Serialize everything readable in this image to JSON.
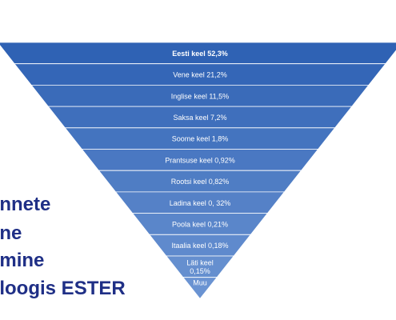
{
  "colors": {
    "segment_top": "#2f62b4",
    "segment_bottom": "#6a93d2",
    "divider": "#ffffff",
    "side_text": "#1f2f86",
    "label": "#ffffff"
  },
  "side_text": {
    "lines": [
      "annete",
      "line",
      "emine",
      "aloogis ESTER"
    ]
  },
  "chart_data": {
    "type": "funnel",
    "labels": [
      "Eesti keel 52,3%",
      "Vene keel 21,2%",
      "Inglise keel 11,5%",
      "Saksa keel 7,2%",
      "Soome keel 1,8%",
      "Prantsuse keel 0,92%",
      "Rootsi keel 0,82%",
      "Ladina keel 0, 32%",
      "Poola keel 0,21%",
      "Itaalia keel 0,18%",
      "Läti keel\n0,15%",
      "Muu"
    ],
    "categories": [
      "Eesti keel",
      "Vene keel",
      "Inglise keel",
      "Saksa keel",
      "Soome keel",
      "Prantsuse keel",
      "Rootsi keel",
      "Ladina keel",
      "Poola keel",
      "Itaalia keel",
      "Läti keel",
      "Muu"
    ],
    "values": [
      52.3,
      21.2,
      11.5,
      7.2,
      1.8,
      0.92,
      0.82,
      0.32,
      0.21,
      0.18,
      0.15,
      null
    ]
  }
}
